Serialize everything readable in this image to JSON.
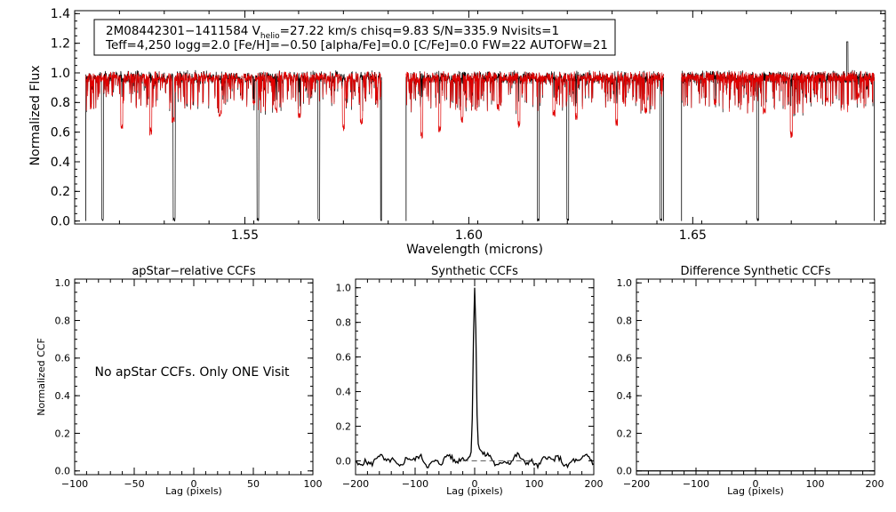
{
  "colors": {
    "axis": "#000000",
    "observed": "#000000",
    "model": "#e00000",
    "dashed": "#555555"
  },
  "chart_data": [
    {
      "type": "line",
      "id": "spectrum",
      "xlabel": "Wavelength (microns)",
      "ylabel": "Normalized Flux",
      "xlim": [
        1.512,
        1.693
      ],
      "ylim": [
        -0.02,
        1.42
      ],
      "xticks": [
        1.55,
        1.6,
        1.65
      ],
      "xtick_labels": [
        "1.55",
        "1.60",
        "1.65"
      ],
      "yticks": [
        0.0,
        0.2,
        0.4,
        0.6,
        0.8,
        1.0,
        1.2,
        1.4
      ],
      "ytick_labels": [
        "0.0",
        "0.2",
        "0.4",
        "0.6",
        "0.8",
        "1.0",
        "1.2",
        "1.4"
      ],
      "info_box": {
        "line1_a": "2M08442301−1411584  V",
        "line1_sub": "helio",
        "line1_b": "=27.22 km/s  chisq=9.83  S/N=335.9  Nvisits=1",
        "line2": "Teff=4,250 logg=2.0 [Fe/H]=−0.50 [alpha/Fe]=0.0 [C/Fe]=0.0 FW=22 AUTOFW=21"
      },
      "chips": [
        [
          1.5145,
          1.5805
        ],
        [
          1.586,
          1.6435
        ],
        [
          1.6475,
          1.6905
        ]
      ],
      "deep_lines_observed": [
        [
          1.5182,
          0.0
        ],
        [
          1.5342,
          0.0
        ],
        [
          1.5529,
          0.0
        ],
        [
          1.5665,
          0.0
        ],
        [
          1.5805,
          0.0
        ],
        [
          1.6155,
          0.0
        ],
        [
          1.6221,
          0.0
        ],
        [
          1.6429,
          0.0
        ],
        [
          1.6645,
          0.0
        ]
      ],
      "model_absorption_lines": [
        [
          1.5225,
          0.62
        ],
        [
          1.529,
          0.58
        ],
        [
          1.534,
          0.66
        ],
        [
          1.5445,
          0.7
        ],
        [
          1.552,
          0.78
        ],
        [
          1.557,
          0.72
        ],
        [
          1.5622,
          0.68
        ],
        [
          1.572,
          0.6
        ],
        [
          1.576,
          0.65
        ],
        [
          1.5895,
          0.55
        ],
        [
          1.5935,
          0.6
        ],
        [
          1.5985,
          0.66
        ],
        [
          1.6065,
          0.74
        ],
        [
          1.6112,
          0.63
        ],
        [
          1.619,
          0.7
        ],
        [
          1.624,
          0.68
        ],
        [
          1.633,
          0.64
        ],
        [
          1.6395,
          0.72
        ],
        [
          1.655,
          0.78
        ],
        [
          1.666,
          0.72
        ],
        [
          1.672,
          0.56
        ],
        [
          1.68,
          0.8
        ],
        [
          1.687,
          0.82
        ]
      ],
      "max_spike": [
        1.6845,
        1.21
      ]
    },
    {
      "type": "line",
      "id": "apstar-ccf",
      "title": "apStar−relative CCFs",
      "xlabel": "Lag (pixels)",
      "ylabel": "Normalized CCF",
      "xlim": [
        -100,
        100
      ],
      "ylim": [
        -0.02,
        1.02
      ],
      "xticks": [
        -100,
        -50,
        0,
        50,
        100
      ],
      "xtick_labels": [
        "−100",
        "−50",
        "0",
        "50",
        "100"
      ],
      "yticks": [
        0.0,
        0.2,
        0.4,
        0.6,
        0.8,
        1.0
      ],
      "ytick_labels": [
        "0.0",
        "0.2",
        "0.4",
        "0.6",
        "0.8",
        "1.0"
      ],
      "message": "No apStar CCFs.  Only ONE Visit"
    },
    {
      "type": "line",
      "id": "synthetic-ccf",
      "title": "Synthetic CCFs",
      "xlabel": "Lag (pixels)",
      "xlim": [
        -200,
        200
      ],
      "ylim": [
        -0.08,
        1.05
      ],
      "xticks": [
        -200,
        -100,
        0,
        100,
        200
      ],
      "xtick_labels": [
        "−200",
        "−100",
        "0",
        "100",
        "200"
      ],
      "yticks": [
        0.0,
        0.2,
        0.4,
        0.6,
        0.8,
        1.0
      ],
      "ytick_labels": [
        "0.0",
        "0.2",
        "0.4",
        "0.6",
        "0.8",
        "1.0"
      ],
      "peak": {
        "lag": 0,
        "value": 1.0
      },
      "baseline": 0.0,
      "dashed_range": [
        -20,
        100
      ]
    },
    {
      "type": "line",
      "id": "difference-ccf",
      "title": "Difference Synthetic CCFs",
      "xlabel": "Lag (pixels)",
      "xlim": [
        -200,
        200
      ],
      "ylim": [
        -0.02,
        1.02
      ],
      "xticks": [
        -200,
        -100,
        0,
        100,
        200
      ],
      "xtick_labels": [
        "−200",
        "−100",
        "0",
        "100",
        "200"
      ],
      "yticks": [
        0.0,
        0.2,
        0.4,
        0.6,
        0.8,
        1.0
      ],
      "ytick_labels": [
        "0.0",
        "0.2",
        "0.4",
        "0.6",
        "0.8",
        "1.0"
      ],
      "values_flat": 0.0
    }
  ]
}
